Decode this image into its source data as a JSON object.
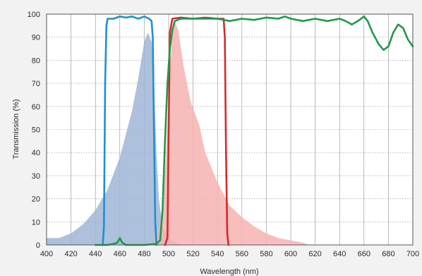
{
  "chart_data": {
    "type": "area",
    "title": "",
    "xlabel": "Wavelength (nm)",
    "ylabel": "Transmission (%)",
    "xlim": [
      400,
      700
    ],
    "ylim": [
      0,
      100
    ],
    "x_ticks": [
      400,
      420,
      440,
      460,
      480,
      500,
      520,
      540,
      560,
      580,
      600,
      620,
      640,
      660,
      680,
      700
    ],
    "y_ticks": [
      0,
      10,
      20,
      30,
      40,
      50,
      60,
      70,
      80,
      90,
      100
    ],
    "grid": true,
    "legend": "none",
    "series": [
      {
        "style": "filled-area",
        "color": "#9fb5d6",
        "points": [
          [
            400,
            3
          ],
          [
            410,
            3
          ],
          [
            420,
            5
          ],
          [
            430,
            9
          ],
          [
            440,
            15
          ],
          [
            450,
            24
          ],
          [
            460,
            38
          ],
          [
            470,
            58
          ],
          [
            475,
            72
          ],
          [
            480,
            88
          ],
          [
            483,
            92
          ],
          [
            486,
            88
          ],
          [
            488,
            70
          ],
          [
            490,
            40
          ],
          [
            492,
            20
          ],
          [
            495,
            8
          ],
          [
            500,
            3
          ],
          [
            505,
            1
          ],
          [
            510,
            0
          ]
        ]
      },
      {
        "style": "filled-area",
        "color": "#f6b3b3",
        "points": [
          [
            485,
            0
          ],
          [
            490,
            2
          ],
          [
            495,
            15
          ],
          [
            498,
            40
          ],
          [
            500,
            65
          ],
          [
            503,
            92
          ],
          [
            505,
            97
          ],
          [
            508,
            93
          ],
          [
            512,
            78
          ],
          [
            518,
            62
          ],
          [
            525,
            52
          ],
          [
            530,
            40
          ],
          [
            540,
            27
          ],
          [
            550,
            17
          ],
          [
            560,
            12
          ],
          [
            570,
            8
          ],
          [
            580,
            5
          ],
          [
            590,
            3
          ],
          [
            600,
            2
          ],
          [
            610,
            1
          ],
          [
            615,
            0
          ]
        ]
      },
      {
        "style": "line",
        "color": "#1f8fd0",
        "points": [
          [
            446,
            0
          ],
          [
            447,
            8
          ],
          [
            448,
            70
          ],
          [
            449,
            95
          ],
          [
            450,
            98
          ],
          [
            455,
            98
          ],
          [
            460,
            99
          ],
          [
            465,
            98.5
          ],
          [
            470,
            99
          ],
          [
            475,
            98
          ],
          [
            480,
            99
          ],
          [
            484,
            98
          ],
          [
            486,
            97
          ],
          [
            487,
            90
          ],
          [
            488,
            50
          ],
          [
            489,
            10
          ],
          [
            490,
            0
          ]
        ]
      },
      {
        "style": "line",
        "color": "#d42a2a",
        "points": [
          [
            497,
            0
          ],
          [
            499,
            3
          ],
          [
            500,
            50
          ],
          [
            501,
            92
          ],
          [
            503,
            98
          ],
          [
            510,
            98.5
          ],
          [
            520,
            98
          ],
          [
            530,
            98.5
          ],
          [
            540,
            98
          ],
          [
            545,
            98
          ],
          [
            546,
            90
          ],
          [
            547,
            40
          ],
          [
            548,
            5
          ],
          [
            549,
            0
          ]
        ]
      },
      {
        "style": "line",
        "color": "#1e9a48",
        "points": [
          [
            440,
            0
          ],
          [
            450,
            0
          ],
          [
            455,
            0.5
          ],
          [
            458,
            1
          ],
          [
            460,
            3
          ],
          [
            462,
            1
          ],
          [
            465,
            0
          ],
          [
            480,
            0
          ],
          [
            490,
            0.5
          ],
          [
            493,
            2
          ],
          [
            495,
            15
          ],
          [
            497,
            45
          ],
          [
            499,
            70
          ],
          [
            501,
            85
          ],
          [
            503,
            93
          ],
          [
            505,
            97
          ],
          [
            510,
            98
          ],
          [
            520,
            98
          ],
          [
            540,
            98
          ],
          [
            550,
            97
          ],
          [
            560,
            98
          ],
          [
            570,
            97.5
          ],
          [
            580,
            98.5
          ],
          [
            590,
            98
          ],
          [
            595,
            99
          ],
          [
            600,
            98
          ],
          [
            610,
            97
          ],
          [
            620,
            98
          ],
          [
            630,
            97
          ],
          [
            640,
            98
          ],
          [
            645,
            97
          ],
          [
            650,
            95.5
          ],
          [
            655,
            97
          ],
          [
            660,
            99
          ],
          [
            663,
            97
          ],
          [
            667,
            92
          ],
          [
            672,
            87
          ],
          [
            676,
            84.5
          ],
          [
            680,
            86
          ],
          [
            684,
            92
          ],
          [
            688,
            95.5
          ],
          [
            692,
            94
          ],
          [
            696,
            89
          ],
          [
            700,
            86
          ]
        ]
      }
    ]
  }
}
